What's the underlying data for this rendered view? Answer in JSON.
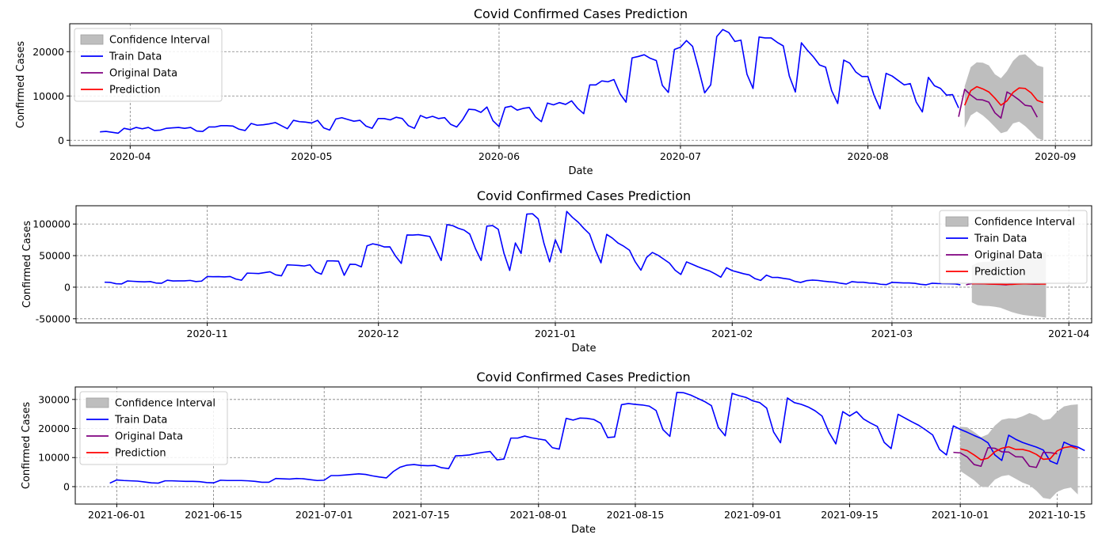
{
  "legend_labels": {
    "ci": "Confidence Interval",
    "train": "Train Data",
    "original": "Original Data",
    "prediction": "Prediction"
  },
  "colors": {
    "train": "#0000ff",
    "original": "#800080",
    "prediction": "#ff0000",
    "ci": "#bebebe",
    "grid": "#808080"
  },
  "chart_data": [
    {
      "type": "line",
      "title": "Covid Confirmed Cases Prediction",
      "xlabel": "Date",
      "ylabel": "Confirmed Cases",
      "grid": true,
      "legend_position": "upper-left",
      "xlim": [
        "2020-03-22",
        "2020-09-07"
      ],
      "ylim": [
        -1200,
        26300
      ],
      "x_ticks": [
        "2020-04-01",
        "2020-05-01",
        "2020-06-01",
        "2020-07-01",
        "2020-08-01",
        "2020-09-01"
      ],
      "x_tick_labels": [
        "2020-04",
        "2020-05",
        "2020-06",
        "2020-07",
        "2020-08",
        "2020-09"
      ],
      "y_ticks": [
        0,
        10000,
        20000
      ],
      "y_tick_labels": [
        "0",
        "10000",
        "20000"
      ],
      "train": {
        "start": "2020-03-27",
        "values": [
          1900,
          2000,
          1800,
          1600,
          2700,
          2400,
          2900,
          2600,
          2900,
          2200,
          2300,
          2700,
          2800,
          2900,
          2700,
          2900,
          2100,
          2000,
          3000,
          3000,
          3300,
          3300,
          3200,
          2500,
          2200,
          3800,
          3400,
          3500,
          3700,
          4000,
          3300,
          2600,
          4500,
          4200,
          4100,
          3900,
          4500,
          2800,
          2300,
          4800,
          5100,
          4700,
          4300,
          4500,
          3200,
          2700,
          4900,
          4900,
          4600,
          5200,
          4900,
          3300,
          2700,
          5600,
          5000,
          5400,
          4900,
          5100,
          3600,
          3000,
          4700,
          7000,
          6900,
          6300,
          7500,
          4400,
          3100,
          7400,
          7700,
          6800,
          7200,
          7400,
          5300,
          4200,
          8400,
          8000,
          8500,
          8100,
          8900,
          7200,
          6000,
          12500,
          12500,
          13400,
          13200,
          13700,
          10500,
          8600,
          18600,
          18900,
          19300,
          18500,
          18000,
          12400,
          10800,
          20500,
          21000,
          22500,
          21200,
          16100,
          10700,
          12500,
          23400,
          25000,
          24300,
          22300,
          22600,
          14900,
          11700,
          23300,
          23100,
          23100,
          22100,
          21300,
          14500,
          10900,
          22000,
          20300,
          18800,
          17000,
          16500,
          11200,
          8300,
          18100,
          17400,
          15400,
          14400,
          14400,
          10200,
          7100,
          15100,
          14500,
          13500,
          12500,
          12800,
          8600,
          6400,
          14200,
          12300,
          11700,
          10200,
          10300,
          7300
        ]
      },
      "original": {
        "start": "2020-08-16",
        "values": [
          5300,
          11500,
          10200,
          9200,
          9100,
          8600,
          6200,
          5000,
          10900,
          10100,
          9100,
          7900,
          7700,
          5200
        ]
      },
      "prediction": {
        "start": "2020-08-17",
        "values": [
          7900,
          11200,
          12100,
          11600,
          10900,
          9500,
          7900,
          8900,
          10800,
          11800,
          11700,
          10700,
          9000,
          8500
        ]
      },
      "ci_lower": {
        "start": "2020-08-17",
        "values": [
          2800,
          5600,
          6500,
          5600,
          4400,
          3000,
          1600,
          2000,
          3800,
          4200,
          3200,
          1900,
          500,
          0
        ]
      },
      "ci_upper": {
        "start": "2020-08-17",
        "values": [
          12200,
          16500,
          17600,
          17500,
          16900,
          14900,
          14000,
          15600,
          17900,
          19200,
          19400,
          18200,
          16900,
          16500
        ]
      }
    },
    {
      "type": "line",
      "title": "Covid Confirmed Cases Prediction",
      "xlabel": "Date",
      "ylabel": "Confirmed Cases",
      "grid": true,
      "legend_position": "upper-right",
      "xlim": [
        "2020-10-09",
        "2021-04-05"
      ],
      "ylim": [
        -56500,
        129000
      ],
      "x_ticks": [
        "2020-11-01",
        "2020-12-01",
        "2021-01-01",
        "2021-02-01",
        "2021-03-01",
        "2021-04-01"
      ],
      "x_tick_labels": [
        "2020-11",
        "2020-12",
        "2021-01",
        "2021-02",
        "2021-03",
        "2021-04"
      ],
      "y_ticks": [
        -50000,
        0,
        50000,
        100000
      ],
      "y_tick_labels": [
        "-50000",
        "0",
        "50000",
        "100000"
      ],
      "train": {
        "start": "2020-10-14",
        "values": [
          7900,
          7600,
          5500,
          5200,
          9800,
          9300,
          8800,
          8400,
          8900,
          6600,
          6300,
          11100,
          9800,
          10000,
          10000,
          10700,
          8900,
          9600,
          16900,
          16600,
          16800,
          16300,
          16900,
          12900,
          11000,
          22300,
          22000,
          21600,
          23000,
          24400,
          19600,
          18000,
          35400,
          35000,
          34500,
          33600,
          35500,
          24300,
          20600,
          41700,
          41700,
          41200,
          18800,
          36300,
          36000,
          32200,
          65600,
          68700,
          66900,
          63800,
          63900,
          49200,
          37700,
          82700,
          82500,
          83200,
          81800,
          80300,
          61300,
          42300,
          99000,
          97500,
          93300,
          90500,
          84100,
          61000,
          42400,
          96700,
          97600,
          91700,
          53700,
          26500,
          70000,
          53500,
          115800,
          116300,
          108200,
          69600,
          40100,
          75000,
          54500,
          120000,
          110600,
          103000,
          93000,
          84300,
          59300,
          38600,
          83600,
          77700,
          69800,
          64800,
          58500,
          40200,
          26900,
          47100,
          55000,
          50600,
          44400,
          38100,
          26800,
          20100,
          40100,
          36200,
          32300,
          28900,
          25800,
          21100,
          15800,
          30800,
          26200,
          23800,
          21300,
          19400,
          13500,
          10700,
          19100,
          15400,
          15500,
          13900,
          12700,
          9200,
          7500,
          10300,
          11200,
          10700,
          9500,
          8600,
          8000,
          6200,
          5000,
          8800,
          7800,
          7800,
          6600,
          6200,
          4600,
          4000,
          7600,
          7200,
          6700,
          6700,
          6100,
          4500,
          3800,
          6200,
          5800,
          5600,
          5400,
          5200,
          3700
        ]
      },
      "original": {
        "start": "2021-03-14",
        "values": [
          3800,
          5800,
          5500,
          5300,
          5100,
          4700,
          4300,
          3700,
          5100,
          5600,
          5500,
          5200,
          4800,
          4900
        ]
      },
      "prediction": {
        "start": "2021-03-15",
        "values": [
          5300,
          5800,
          5400,
          5000,
          4800,
          4600,
          4400,
          4300,
          4900,
          5300,
          5500,
          5300,
          5000,
          5000
        ]
      },
      "ci_lower": {
        "start": "2021-03-15",
        "values": [
          -24000,
          -28500,
          -29500,
          -29800,
          -31000,
          -32500,
          -36000,
          -39500,
          -42000,
          -44000,
          -45000,
          -46000,
          -47000,
          -48500
        ]
      },
      "ci_upper": {
        "start": "2021-03-15",
        "values": [
          34000,
          39000,
          40000,
          40500,
          41000,
          42000,
          43000,
          44500,
          46500,
          48000,
          50000,
          52000,
          54000,
          56000
        ]
      }
    },
    {
      "type": "line",
      "title": "Covid Confirmed Cases Prediction",
      "xlabel": "Date",
      "ylabel": "Confirmed Cases",
      "grid": true,
      "legend_position": "upper-left",
      "xlim": [
        "2021-05-26",
        "2021-10-20"
      ],
      "ylim": [
        -6000,
        34300
      ],
      "x_ticks": [
        "2021-06-01",
        "2021-06-15",
        "2021-07-01",
        "2021-07-15",
        "2021-08-01",
        "2021-08-15",
        "2021-09-01",
        "2021-09-15",
        "2021-10-01",
        "2021-10-15"
      ],
      "x_tick_labels": [
        "2021-06-01",
        "2021-06-15",
        "2021-07-01",
        "2021-07-15",
        "2021-08-01",
        "2021-08-15",
        "2021-09-01",
        "2021-09-15",
        "2021-10-01",
        "2021-10-15"
      ],
      "y_ticks": [
        0,
        10000,
        20000,
        30000
      ],
      "y_tick_labels": [
        "0",
        "10000",
        "20000",
        "30000"
      ],
      "train": {
        "start": "2021-05-31",
        "values": [
          1200,
          2300,
          2100,
          2000,
          1900,
          1600,
          1300,
          1200,
          2000,
          2000,
          1900,
          1800,
          1800,
          1700,
          1400,
          1300,
          2200,
          2100,
          2100,
          2100,
          2000,
          1800,
          1500,
          1500,
          2800,
          2700,
          2600,
          2800,
          2700,
          2400,
          2100,
          2200,
          3800,
          3800,
          4000,
          4200,
          4400,
          4200,
          3700,
          3300,
          3000,
          5200,
          6700,
          7400,
          7600,
          7300,
          7200,
          7300,
          6500,
          6200,
          10600,
          10700,
          10900,
          11400,
          11800,
          12100,
          9200,
          9500,
          16700,
          16700,
          17400,
          16800,
          16400,
          16000,
          13400,
          12900,
          23500,
          22900,
          23600,
          23500,
          23100,
          21800,
          16900,
          17100,
          28200,
          28600,
          28300,
          28100,
          27700,
          26200,
          19600,
          17300,
          32400,
          32300,
          31500,
          30400,
          29300,
          27900,
          20400,
          17500,
          32100,
          31300,
          30700,
          29500,
          28900,
          27000,
          18800,
          15100,
          30500,
          28900,
          28300,
          27400,
          26100,
          24300,
          18700,
          14700,
          25800,
          24300,
          25800,
          23300,
          21900,
          20700,
          15200,
          13100,
          24900,
          23600,
          22300,
          21100,
          19500,
          17800,
          12800,
          10900,
          20900,
          19700,
          18700,
          17600,
          16600,
          15100,
          10900,
          9000,
          17700,
          16300,
          15200,
          14400,
          13600,
          12600,
          8800,
          7800,
          15300,
          14200,
          13600,
          12400
        ]
      },
      "original": {
        "start": "2021-09-30",
        "values": [
          11800,
          11600,
          10200,
          7600,
          7000,
          13400,
          13200,
          12000,
          11900,
          10300,
          10200,
          7000,
          6600,
          11800,
          11700,
          11300
        ]
      },
      "prediction": {
        "start": "2021-10-01",
        "values": [
          13000,
          12400,
          10900,
          9200,
          9800,
          12000,
          13200,
          13700,
          12800,
          12800,
          12200,
          11100,
          9400,
          9600,
          12300,
          13400,
          13800,
          13000
        ]
      },
      "ci_lower": {
        "start": "2021-10-01",
        "values": [
          5400,
          3800,
          2200,
          0,
          -200,
          2400,
          3600,
          4000,
          2700,
          1400,
          500,
          -1400,
          -3900,
          -4300,
          -1800,
          -800,
          -300,
          -2700
        ]
      },
      "ci_upper": {
        "start": "2021-10-01",
        "values": [
          20600,
          20400,
          18800,
          17000,
          18000,
          21000,
          23000,
          23500,
          23400,
          24200,
          25300,
          24500,
          22900,
          23300,
          25800,
          27600,
          28100,
          28300
        ]
      }
    }
  ]
}
